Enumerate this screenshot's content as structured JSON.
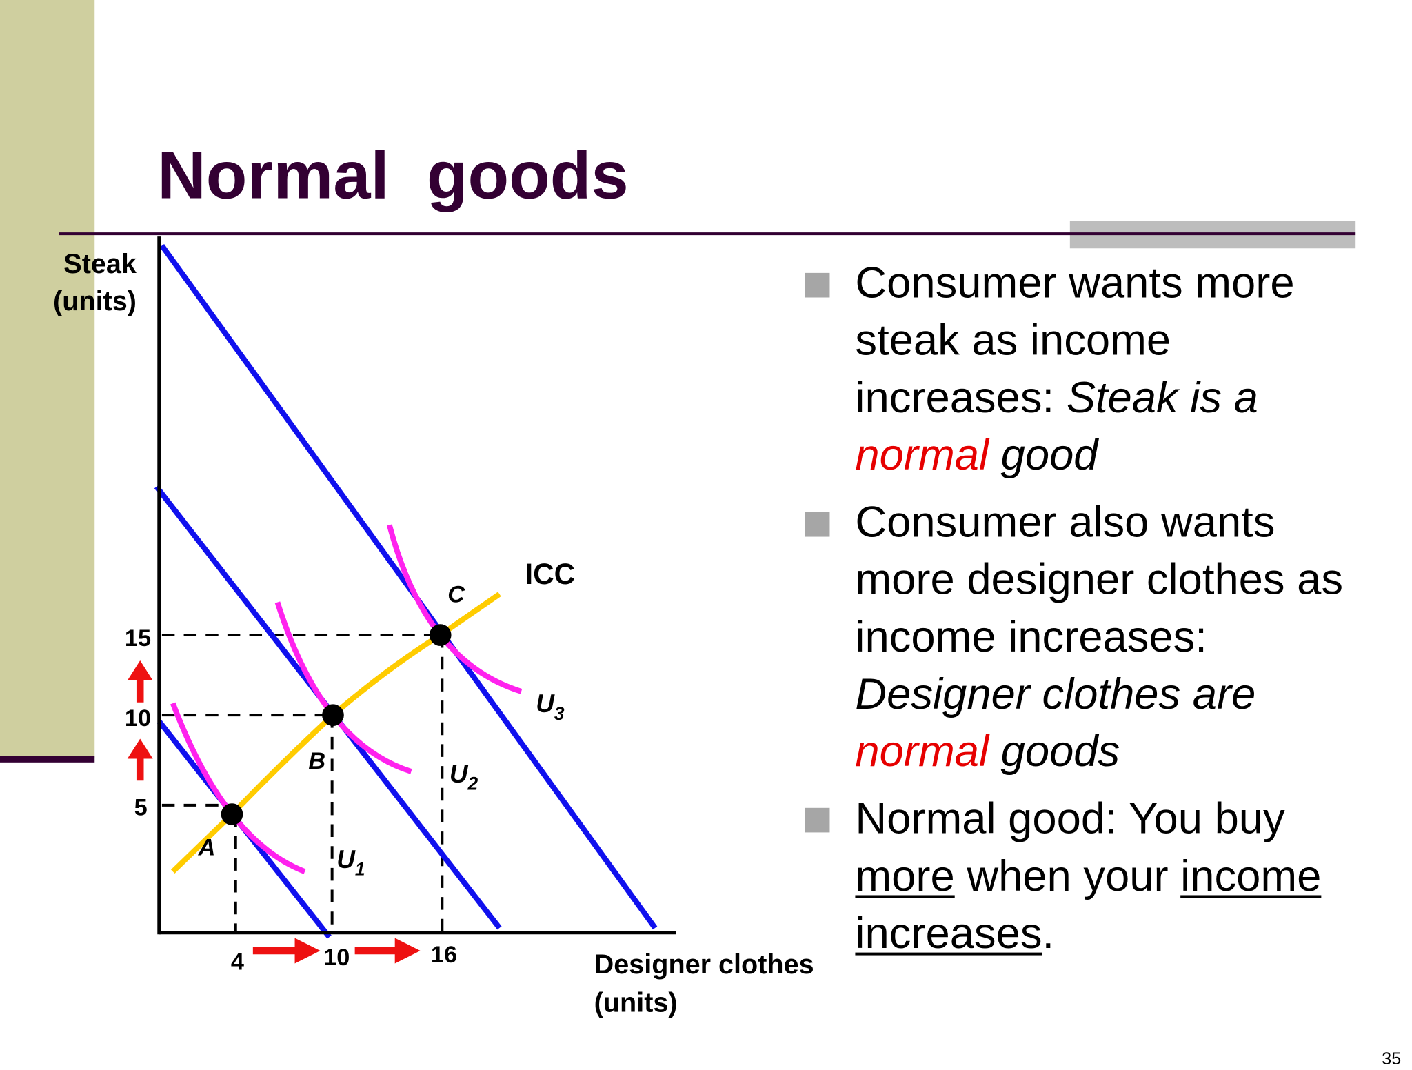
{
  "title": "Normal  goods",
  "diagram": {
    "y_axis_label": [
      "Steak",
      "(units)"
    ],
    "x_axis_label": [
      "Designer clothes",
      "(units)"
    ],
    "y_ticks": [
      15,
      10,
      5
    ],
    "x_ticks": [
      4,
      10,
      16
    ],
    "points": [
      "A",
      "B",
      "C"
    ],
    "curves": [
      {
        "letter": "U",
        "index": "1"
      },
      {
        "letter": "U",
        "index": "2"
      },
      {
        "letter": "U",
        "index": "3"
      }
    ],
    "icc_label": "ICC"
  },
  "bullets": [
    [
      "Consumer wants more",
      "steak as income",
      "increases: ",
      "Steak is a",
      "normal",
      " good"
    ],
    [
      "Consumer also wants",
      "more designer clothes as",
      "income increases:",
      "Designer clothes are",
      "normal",
      " goods"
    ],
    [
      "Normal good: You buy",
      "more",
      " when your ",
      "income",
      "increases",
      "."
    ]
  ],
  "page_number": 35
}
